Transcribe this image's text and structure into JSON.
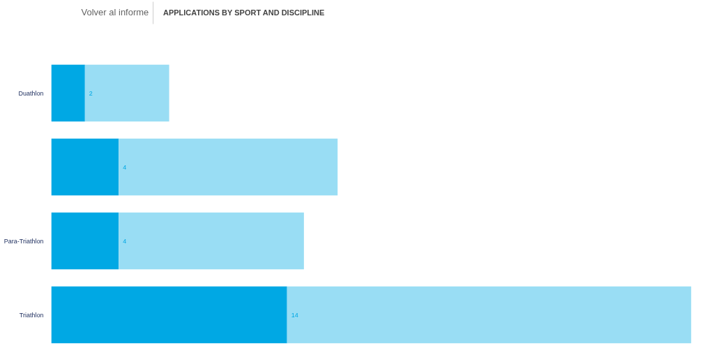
{
  "chart_data": {
    "type": "bar",
    "orientation": "horizontal",
    "stacked": true,
    "title": "APPLICATIONS BY SPORT AND DISCIPLINE",
    "annotations": [
      "Volver al informe"
    ],
    "categories": [
      "Duathlon",
      null,
      "Para-Triathlon",
      "Triathlon"
    ],
    "series": [
      {
        "color": "#00a8e4",
        "values": [
          2,
          4,
          4,
          14
        ],
        "value_labels": [
          "2",
          "4",
          "4",
          "14"
        ]
      },
      {
        "color": "#99ddf4",
        "values": [
          5,
          13,
          11,
          24
        ]
      }
    ],
    "grid": false
  }
}
